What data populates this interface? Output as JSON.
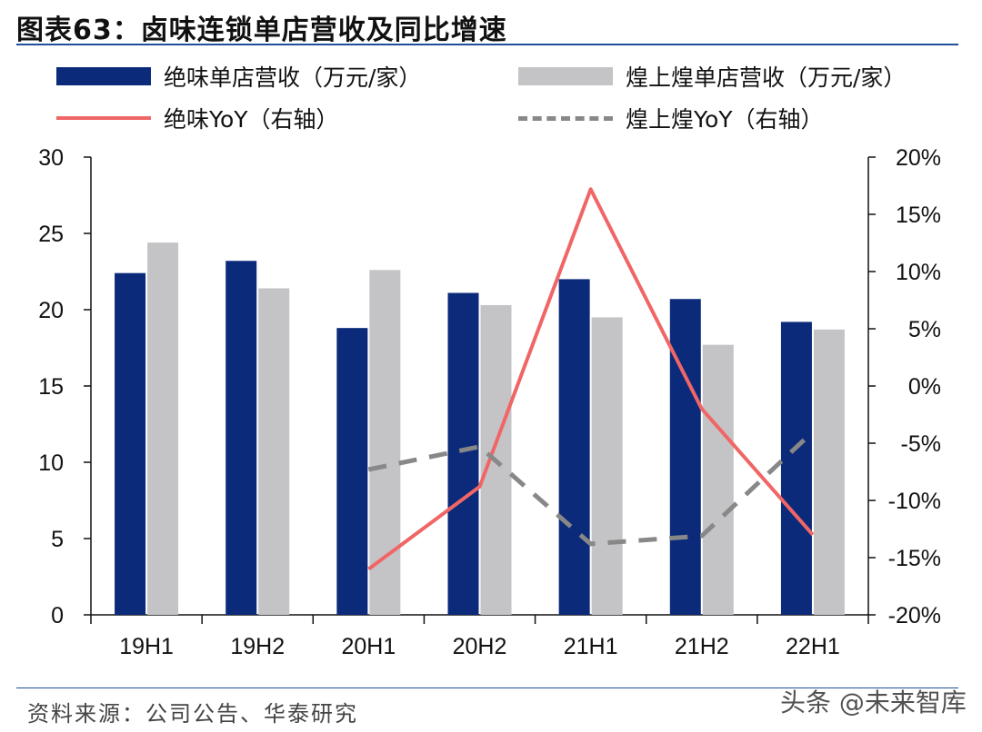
{
  "title": "图表63：卤味连锁单店营收及同比增速",
  "legend": {
    "bar1": "绝味单店营收（万元/家）",
    "bar2": "煌上煌单店营收（万元/家）",
    "line1": "绝味YoY（右轴）",
    "line2": "煌上煌YoY（右轴）"
  },
  "colors": {
    "bar1": "#0b2a7a",
    "bar2": "#c4c4c6",
    "line1": "#f06666",
    "line2": "#888888",
    "axis": "#111111"
  },
  "chart_data": {
    "type": "bar",
    "categories": [
      "19H1",
      "19H2",
      "20H1",
      "20H2",
      "21H1",
      "21H2",
      "22H1"
    ],
    "series": [
      {
        "name": "绝味单店营收（万元/家）",
        "type": "bar",
        "axis": "left",
        "values": [
          22.4,
          23.2,
          18.8,
          21.1,
          22.0,
          20.7,
          19.2
        ]
      },
      {
        "name": "煌上煌单店营收（万元/家）",
        "type": "bar",
        "axis": "left",
        "values": [
          24.4,
          21.4,
          22.6,
          20.3,
          19.5,
          17.7,
          18.7
        ]
      },
      {
        "name": "绝味YoY（右轴）",
        "type": "line",
        "axis": "right",
        "values": [
          null,
          null,
          -16.0,
          -8.8,
          17.2,
          -2.0,
          -13.0
        ]
      },
      {
        "name": "煌上煌YoY（右轴）",
        "type": "line",
        "axis": "right",
        "dashed": true,
        "values": [
          null,
          null,
          -7.3,
          -5.3,
          -13.8,
          -13.1,
          -4.0
        ]
      }
    ],
    "y_left": {
      "min": 0,
      "max": 30,
      "ticks": [
        "0",
        "5",
        "10",
        "15",
        "20",
        "25",
        "30"
      ]
    },
    "y_right": {
      "min": -20,
      "max": 20,
      "ticks": [
        "-20%",
        "-15%",
        "-10%",
        "-5%",
        "0%",
        "5%",
        "10%",
        "15%",
        "20%"
      ]
    },
    "xlabel": "",
    "ylabel": ""
  },
  "source": "资料来源：公司公告、华泰研究",
  "watermark": "头条 @未来智库"
}
